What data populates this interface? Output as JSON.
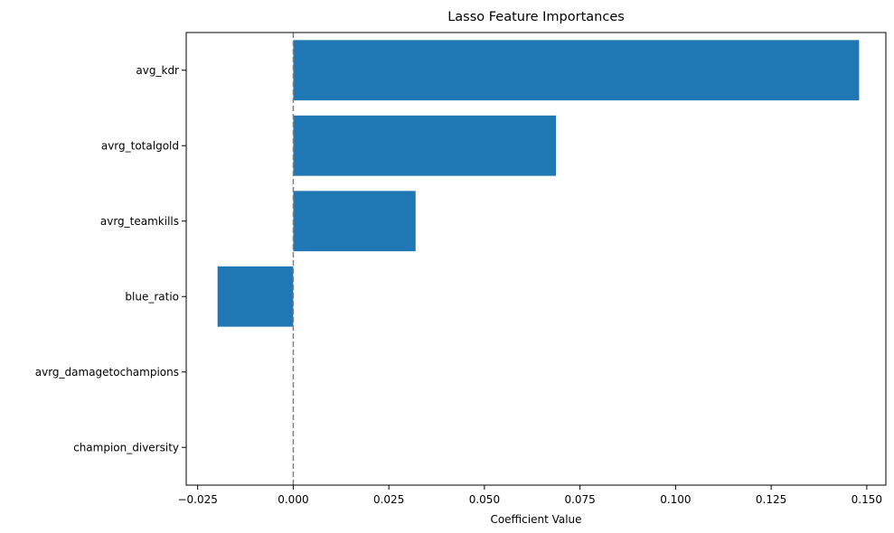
{
  "chart_data": {
    "type": "bar",
    "orientation": "horizontal",
    "title": "Lasso Feature Importances",
    "xlabel": "Coefficient Value",
    "ylabel": "",
    "categories": [
      "avg_kdr",
      "avrg_totalgold",
      "avrg_teamkills",
      "blue_ratio",
      "avrg_damagetochampions",
      "champion_diversity"
    ],
    "values": [
      0.148,
      0.0687,
      0.032,
      -0.0198,
      0.0,
      0.0
    ],
    "xlim": [
      -0.028,
      0.155
    ],
    "xticks": [
      -0.025,
      0.0,
      0.025,
      0.05,
      0.075,
      0.1,
      0.125,
      0.15
    ],
    "xtick_labels": [
      "−0.025",
      "0.000",
      "0.025",
      "0.050",
      "0.075",
      "0.100",
      "0.125",
      "0.150"
    ],
    "reference_line": {
      "x": 0.0,
      "style": "dashed",
      "color": "#808080"
    },
    "bar_color": "#1f77b4",
    "grid": false,
    "legend": "none"
  }
}
